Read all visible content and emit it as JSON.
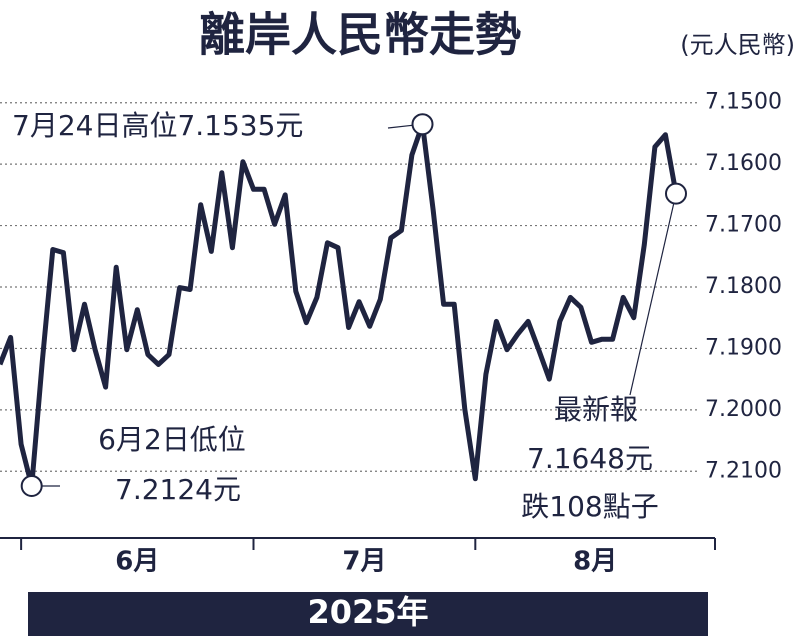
{
  "chart_data": {
    "type": "line",
    "title": "離岸人民幣走勢",
    "unit": "(元人民幣)",
    "categories": [
      null,
      null,
      "6月",
      null,
      null,
      null,
      null,
      null,
      null,
      null,
      null,
      null,
      null,
      null,
      null,
      null,
      null,
      null,
      null,
      null,
      null,
      null,
      null,
      null,
      "7月",
      null,
      null,
      null,
      null,
      null,
      null,
      null,
      null,
      null,
      null,
      null,
      null,
      null,
      null,
      null,
      null,
      null,
      null,
      null,
      null,
      "8月",
      null,
      null,
      null,
      null,
      null,
      null,
      null,
      null,
      null,
      null,
      null,
      null,
      null,
      null,
      null,
      null,
      null,
      null,
      null
    ],
    "values": [
      7.1926,
      7.1882,
      7.2056,
      7.2124,
      7.1921,
      7.1739,
      7.1744,
      7.1902,
      7.1828,
      7.1902,
      7.1963,
      7.1768,
      7.1902,
      7.1837,
      7.191,
      7.1926,
      7.191,
      7.1801,
      7.1804,
      7.1666,
      7.1742,
      7.1614,
      7.1736,
      7.1596,
      7.1641,
      7.1641,
      7.1698,
      7.165,
      7.1807,
      7.1858,
      7.1817,
      7.1728,
      7.1736,
      7.1866,
      7.1824,
      7.1864,
      7.182,
      7.172,
      7.1708,
      7.1585,
      7.1535,
      7.1674,
      7.1828,
      7.1828,
      7.1999,
      7.2112,
      7.1942,
      7.1856,
      7.1902,
      7.1877,
      7.1856,
      7.1902,
      7.195,
      7.1856,
      7.1817,
      7.1833,
      7.189,
      7.1885,
      7.1885,
      7.1817,
      7.185,
      7.1731,
      7.1572,
      7.1552,
      7.1648
    ],
    "color": "#1f2440",
    "ylim": [
      7.145,
      7.215
    ],
    "y_inverted": true,
    "yticks": [
      {
        "value": 7.15,
        "label": "7.1500"
      },
      {
        "value": 7.16,
        "label": "7.1600"
      },
      {
        "value": 7.17,
        "label": "7.1700"
      },
      {
        "value": 7.18,
        "label": "7.1800"
      },
      {
        "value": 7.19,
        "label": "7.1900"
      },
      {
        "value": 7.2,
        "label": "7.2000"
      },
      {
        "value": 7.21,
        "label": "7.2100"
      }
    ],
    "grid": true,
    "annotations": {
      "high": "7月24日高位7.1535元",
      "low": [
        "6月2日低位",
        "7.2124元"
      ],
      "latest": [
        "最新報",
        "7.1648元",
        "跌108點子"
      ]
    },
    "footer": "2025年"
  }
}
